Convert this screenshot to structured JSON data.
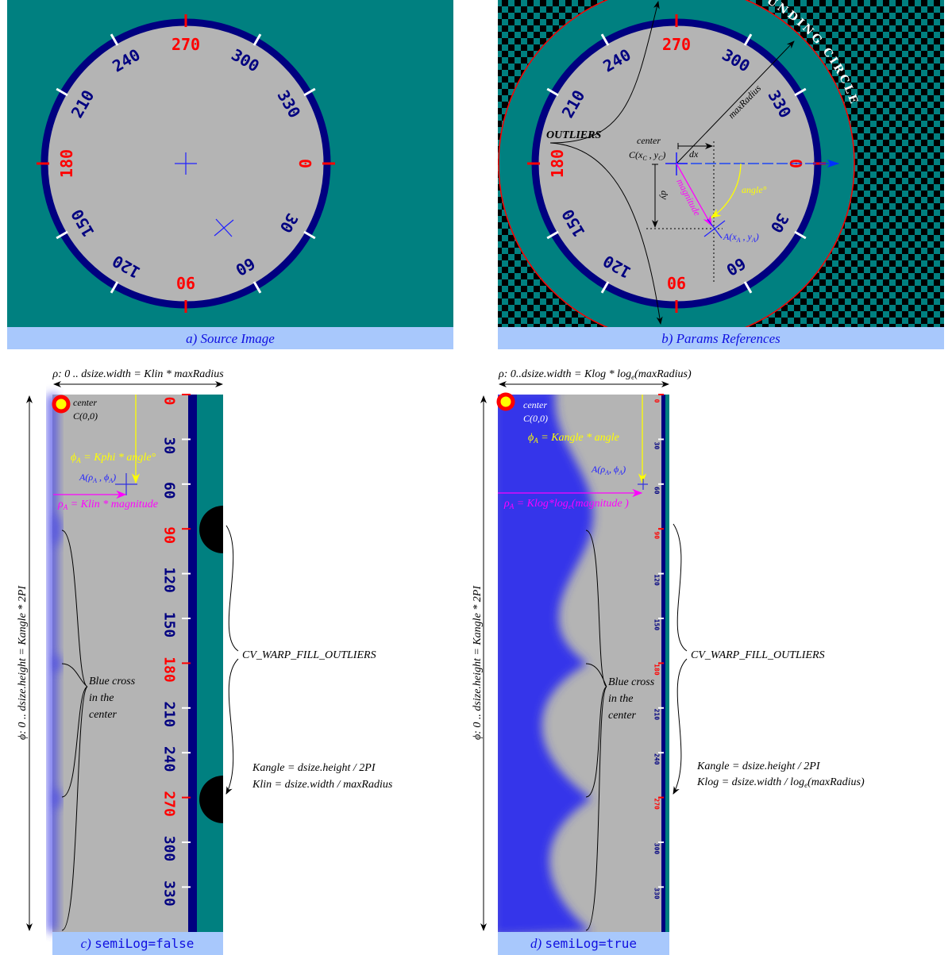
{
  "colors": {
    "teal": "#008080",
    "navy": "#000080",
    "gray": "#b4b4b4",
    "red": "#ff0000",
    "caption_bg": "#a8c8fc",
    "caption_text": "#1010e0",
    "blue": "#3030e8",
    "magenta": "#ff00ff",
    "yellow": "#ffff00"
  },
  "dial": {
    "labels": [
      {
        "text": "0",
        "angle": 0,
        "cardinal": true
      },
      {
        "text": "30",
        "angle": 30,
        "cardinal": false
      },
      {
        "text": "60",
        "angle": 60,
        "cardinal": false
      },
      {
        "text": "90",
        "angle": 90,
        "cardinal": true
      },
      {
        "text": "120",
        "angle": 120,
        "cardinal": false
      },
      {
        "text": "150",
        "angle": 150,
        "cardinal": false
      },
      {
        "text": "180",
        "angle": 180,
        "cardinal": true
      },
      {
        "text": "210",
        "angle": 210,
        "cardinal": false
      },
      {
        "text": "240",
        "angle": 240,
        "cardinal": false
      },
      {
        "text": "270",
        "angle": 270,
        "cardinal": true
      },
      {
        "text": "300",
        "angle": 300,
        "cardinal": false
      },
      {
        "text": "330",
        "angle": 330,
        "cardinal": false
      }
    ]
  },
  "panel_a": {
    "caption": "a) Source Image"
  },
  "panel_b": {
    "caption": "b) Params References",
    "bounding_circle": "BOUNDING CIRCLE",
    "outliers": "OUTLIERS",
    "max_radius": "maxRadius",
    "center_label": "center",
    "center_coord": {
      "c": "C(x",
      "sub1": "C",
      "mid": " , y",
      "sub2": "C",
      "end": ")"
    },
    "dx": "dx",
    "dy": "dy",
    "magnitude": "magnitude",
    "angle": "angle°",
    "point_a": {
      "a": "A(x",
      "sub1": "A",
      "mid": " , y",
      "sub2": "A",
      "end": ")"
    }
  },
  "panel_c": {
    "caption_prefix": "c) ",
    "caption_code": "semiLog=false",
    "rho_range": "ρ: 0 .. dsize.width = Klin * maxRadius",
    "phi_range": "ϕ: 0 .. dsize.height = Kangle * 2PI",
    "center_label": "center",
    "center_coord": "C(0,0)",
    "phi_formula": {
      "a": "ϕ",
      "sub": "A",
      "b": " = Kphi * angle°"
    },
    "point_a": {
      "a": "A(ρ",
      "sub1": "A",
      "mid": " , ϕ",
      "sub2": "A",
      "end": ")"
    },
    "rho_formula": {
      "a": "ρ",
      "sub": "A",
      "b": " = Klin * magnitude"
    },
    "fill_outliers": "CV_WARP_FILL_OUTLIERS",
    "blue_cross": [
      "Blue cross",
      "in the",
      "center"
    ],
    "kangle": "Kangle = dsize.height / 2PI",
    "k2": "Klin = dsize.width / maxRadius"
  },
  "panel_d": {
    "caption_prefix": "d) ",
    "caption_code": "semiLog=true",
    "rho_range": {
      "a": "ρ: 0..dsize.width = Klog * log",
      "sub": "e",
      "b": "(maxRadius)"
    },
    "phi_range": "ϕ: 0 .. dsize.height = Kangle * 2PI",
    "center_label": "center",
    "center_coord": "C(0,0)",
    "phi_formula": {
      "a": "ϕ",
      "sub": "A",
      "b": " = Kangle * angle"
    },
    "point_a": {
      "a": "A(ρ",
      "sub1": "A",
      "mid": ", ϕ",
      "sub2": "A",
      "end": ")"
    },
    "rho_formula": {
      "a": "ρ",
      "sub": "A",
      "b": " = Klog*log",
      "sub2": "e",
      "c": "(magnitude )"
    },
    "fill_outliers": "CV_WARP_FILL_OUTLIERS",
    "blue_cross": [
      "Blue cross",
      "in the",
      "center"
    ],
    "kangle": "Kangle = dsize.height / 2PI",
    "k2": {
      "a": "Klog = dsize.width / log",
      "sub": "e",
      "b": "(maxRadius)"
    }
  }
}
